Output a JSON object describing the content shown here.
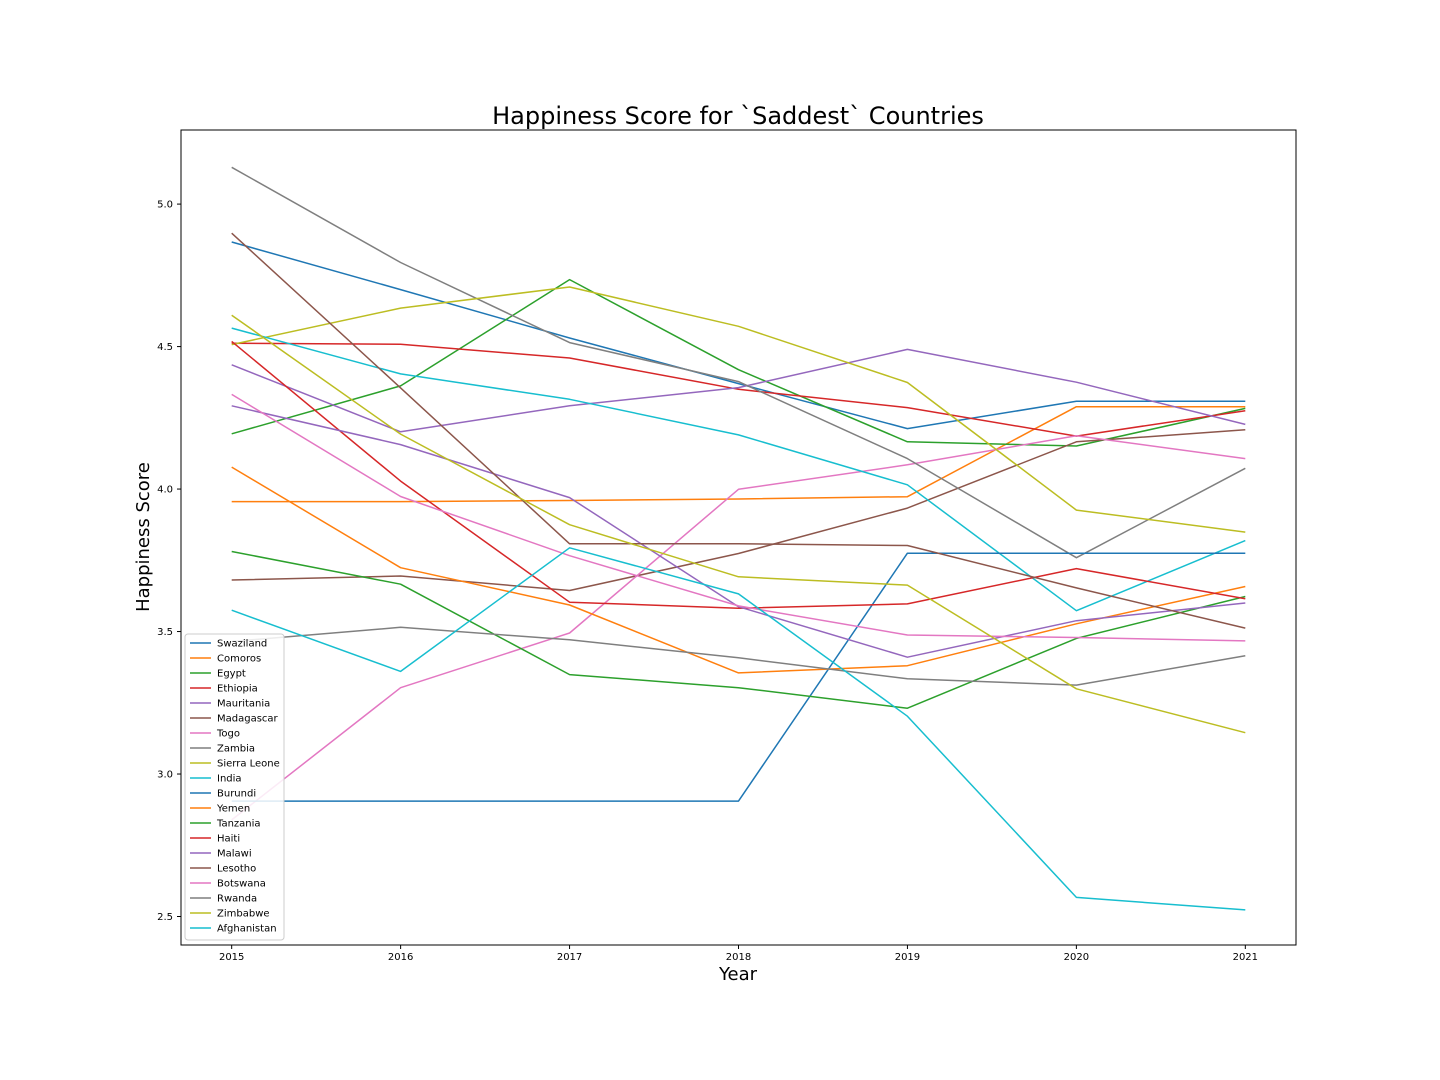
{
  "chart_data": {
    "type": "line",
    "title": "Happiness Score for `Saddest` Countries",
    "xlabel": "Year",
    "ylabel": "Happiness Score",
    "x": [
      2015,
      2016,
      2017,
      2018,
      2019,
      2020,
      2021
    ],
    "x_ticks": [
      "2015",
      "2016",
      "2017",
      "2018",
      "2019",
      "2020",
      "2021"
    ],
    "y_ticks": [
      "2.5",
      "3.0",
      "3.5",
      "4.0",
      "4.5",
      "5.0"
    ],
    "xlim": [
      2014.7,
      2021.3
    ],
    "ylim": [
      2.4,
      5.26
    ],
    "grid": false,
    "legend_position": "lower-left",
    "series": [
      {
        "name": "Swaziland",
        "color": "#1f77b4",
        "values": [
          4.867,
          4.7,
          4.53,
          4.37,
          4.212,
          4.308,
          4.308
        ]
      },
      {
        "name": "Comoros",
        "color": "#ff7f0e",
        "values": [
          3.956,
          3.956,
          3.96,
          3.965,
          3.973,
          4.289,
          4.289
        ]
      },
      {
        "name": "Egypt",
        "color": "#2ca02c",
        "values": [
          4.194,
          4.362,
          4.735,
          4.419,
          4.166,
          4.151,
          4.283
        ]
      },
      {
        "name": "Ethiopia",
        "color": "#d62728",
        "values": [
          4.512,
          4.508,
          4.46,
          4.35,
          4.286,
          4.186,
          4.275
        ]
      },
      {
        "name": "Mauritania",
        "color": "#9467bd",
        "values": [
          4.436,
          4.201,
          4.292,
          4.356,
          4.49,
          4.375,
          4.227
        ]
      },
      {
        "name": "Madagascar",
        "color": "#8c564b",
        "values": [
          3.681,
          3.695,
          3.644,
          3.774,
          3.933,
          4.166,
          4.208
        ]
      },
      {
        "name": "Togo",
        "color": "#e377c2",
        "values": [
          2.839,
          3.303,
          3.495,
          3.999,
          4.085,
          4.187,
          4.107
        ]
      },
      {
        "name": "Zambia",
        "color": "#7f7f7f",
        "values": [
          5.129,
          4.795,
          4.514,
          4.377,
          4.107,
          3.759,
          4.073
        ]
      },
      {
        "name": "Sierra Leone",
        "color": "#bcbd22",
        "values": [
          4.507,
          4.635,
          4.709,
          4.571,
          4.374,
          3.926,
          3.849
        ]
      },
      {
        "name": "India",
        "color": "#17becf",
        "values": [
          4.565,
          4.404,
          4.315,
          4.19,
          4.015,
          3.573,
          3.819
        ]
      },
      {
        "name": "Burundi",
        "color": "#1f77b4",
        "values": [
          2.905,
          2.905,
          2.905,
          2.905,
          3.775,
          3.775,
          3.775
        ]
      },
      {
        "name": "Yemen",
        "color": "#ff7f0e",
        "values": [
          4.077,
          3.724,
          3.593,
          3.355,
          3.38,
          3.527,
          3.658
        ]
      },
      {
        "name": "Tanzania",
        "color": "#2ca02c",
        "values": [
          3.781,
          3.666,
          3.349,
          3.303,
          3.231,
          3.476,
          3.623
        ]
      },
      {
        "name": "Haiti",
        "color": "#d62728",
        "values": [
          4.518,
          4.028,
          3.603,
          3.582,
          3.597,
          3.721,
          3.615
        ]
      },
      {
        "name": "Malawi",
        "color": "#9467bd",
        "values": [
          4.292,
          4.156,
          3.97,
          3.587,
          3.41,
          3.538,
          3.6
        ]
      },
      {
        "name": "Lesotho",
        "color": "#8c564b",
        "values": [
          4.898,
          4.355,
          3.808,
          3.808,
          3.802,
          3.653,
          3.512
        ]
      },
      {
        "name": "Botswana",
        "color": "#e377c2",
        "values": [
          4.332,
          3.974,
          3.766,
          3.59,
          3.488,
          3.479,
          3.467
        ]
      },
      {
        "name": "Rwanda",
        "color": "#7f7f7f",
        "values": [
          3.465,
          3.515,
          3.471,
          3.408,
          3.334,
          3.312,
          3.415
        ]
      },
      {
        "name": "Zimbabwe",
        "color": "#bcbd22",
        "values": [
          4.61,
          4.193,
          3.875,
          3.692,
          3.663,
          3.299,
          3.145
        ]
      },
      {
        "name": "Afghanistan",
        "color": "#17becf",
        "values": [
          3.575,
          3.36,
          3.794,
          3.632,
          3.203,
          2.567,
          2.523
        ]
      }
    ]
  }
}
